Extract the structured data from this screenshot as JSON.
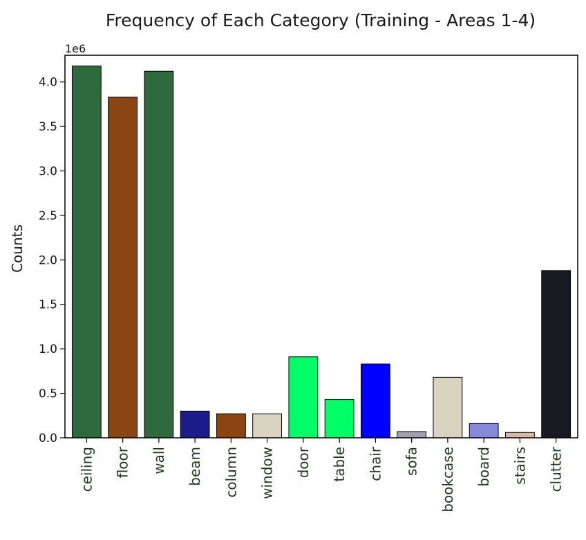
{
  "chart_data": {
    "type": "bar",
    "title": "Frequency of Each Category (Training - Areas 1-4)",
    "ylabel": "Counts",
    "xlabel": "",
    "y_offset_label": "1e6",
    "ylim": [
      0,
      4.3
    ],
    "yticks": [
      "0.0",
      "0.5",
      "1.0",
      "1.5",
      "2.0",
      "2.5",
      "3.0",
      "3.5",
      "4.0"
    ],
    "grid": false,
    "categories": [
      "ceiling",
      "floor",
      "wall",
      "beam",
      "column",
      "window",
      "door",
      "table",
      "chair",
      "sofa",
      "bookcase",
      "board",
      "stairs",
      "clutter"
    ],
    "values": [
      4.18,
      3.83,
      4.12,
      0.3,
      0.27,
      0.27,
      0.91,
      0.43,
      0.83,
      0.07,
      0.68,
      0.16,
      0.06,
      1.88
    ],
    "colors": [
      "#2e6a3e",
      "#8b4513",
      "#2e6a3e",
      "#1b1b8a",
      "#8b4513",
      "#d8d4c0",
      "#00ff66",
      "#00ff66",
      "#0000ff",
      "#a0a0b0",
      "#d8d4c0",
      "#8888dd",
      "#d8b8a8",
      "#1a1a22"
    ]
  }
}
